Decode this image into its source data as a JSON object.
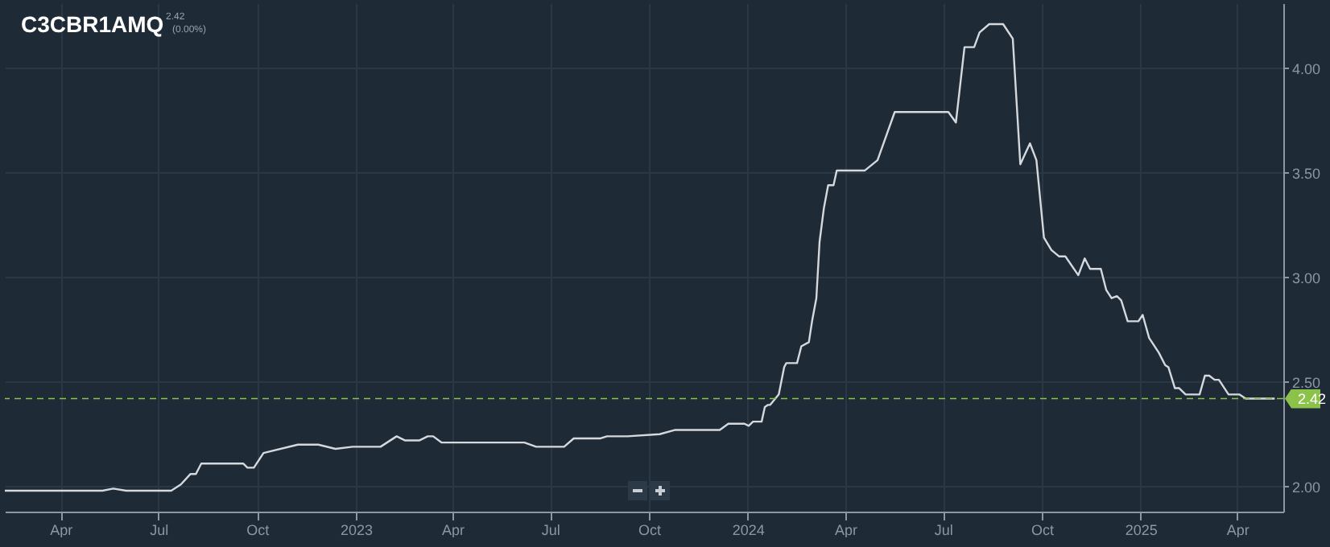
{
  "chart_data": {
    "type": "line",
    "title": "C3CBR1AMQ",
    "annotations": [
      "2.42",
      "(0.00%)"
    ],
    "x": [
      "2022-02-08",
      "2022-05-10",
      "2022-05-20",
      "2022-06-01",
      "2022-07-13",
      "2022-07-22",
      "2022-07-31",
      "2022-08-05",
      "2022-08-10",
      "2022-09-18",
      "2022-09-22",
      "2022-09-28",
      "2022-10-07",
      "2022-11-08",
      "2022-11-27",
      "2022-12-13",
      "2022-12-29",
      "2023-01-24",
      "2023-02-08",
      "2023-02-16",
      "2023-03-01",
      "2023-03-09",
      "2023-03-14",
      "2023-03-22",
      "2023-06-07",
      "2023-06-18",
      "2023-07-14",
      "2023-07-23",
      "2023-08-17",
      "2023-08-23",
      "2023-09-11",
      "2023-10-11",
      "2023-10-25",
      "2023-12-06",
      "2023-12-14",
      "2023-12-29",
      "2024-01-02",
      "2024-01-06",
      "2024-01-14",
      "2024-01-17",
      "2024-01-20",
      "2024-01-22",
      "2024-01-30",
      "2024-02-04",
      "2024-02-06",
      "2024-02-16",
      "2024-02-20",
      "2024-02-27",
      "2024-03-01",
      "2024-03-05",
      "2024-03-08",
      "2024-03-12",
      "2024-03-16",
      "2024-03-21",
      "2024-03-24",
      "2024-04-19",
      "2024-05-01",
      "2024-05-17",
      "2024-07-06",
      "2024-07-13",
      "2024-07-21",
      "2024-07-30",
      "2024-08-04",
      "2024-08-13",
      "2024-08-26",
      "2024-09-04",
      "2024-09-11",
      "2024-09-20",
      "2024-09-26",
      "2024-10-03",
      "2024-10-10",
      "2024-10-17",
      "2024-10-23",
      "2024-11-04",
      "2024-11-10",
      "2024-11-15",
      "2024-11-25",
      "2024-11-30",
      "2024-12-05",
      "2024-12-10",
      "2024-12-14",
      "2024-12-20",
      "2024-12-30",
      "2025-01-03",
      "2025-01-09",
      "2025-01-18",
      "2025-01-24",
      "2025-01-27",
      "2025-02-02",
      "2025-02-06",
      "2025-02-12",
      "2025-02-25",
      "2025-03-02",
      "2025-03-06",
      "2025-03-11",
      "2025-03-15",
      "2025-03-24",
      "2025-04-03",
      "2025-04-09",
      "2025-05-06"
    ],
    "series": [
      {
        "color": "#d5d9de",
        "values": [
          1.98,
          1.98,
          1.99,
          1.98,
          1.98,
          2.01,
          2.06,
          2.06,
          2.11,
          2.11,
          2.09,
          2.09,
          2.16,
          2.2,
          2.2,
          2.18,
          2.19,
          2.19,
          2.24,
          2.22,
          2.22,
          2.24,
          2.24,
          2.21,
          2.21,
          2.19,
          2.19,
          2.23,
          2.23,
          2.24,
          2.24,
          2.25,
          2.27,
          2.27,
          2.3,
          2.3,
          2.29,
          2.31,
          2.31,
          2.38,
          2.39,
          2.39,
          2.44,
          2.57,
          2.59,
          2.59,
          2.67,
          2.69,
          2.79,
          2.9,
          3.17,
          3.33,
          3.44,
          3.44,
          3.51,
          3.51,
          3.56,
          3.79,
          3.79,
          3.74,
          4.1,
          4.1,
          4.17,
          4.21,
          4.21,
          4.14,
          3.54,
          3.64,
          3.56,
          3.19,
          3.13,
          3.1,
          3.1,
          3.01,
          3.09,
          3.04,
          3.04,
          2.94,
          2.9,
          2.91,
          2.89,
          2.79,
          2.79,
          2.82,
          2.71,
          2.64,
          2.58,
          2.57,
          2.47,
          2.47,
          2.44,
          2.44,
          2.53,
          2.53,
          2.51,
          2.51,
          2.44,
          2.44,
          2.42,
          2.42
        ]
      }
    ],
    "xlim": [
      "2022-02-08",
      "2025-05-14"
    ],
    "xticks": [
      {
        "value": "2022-04-01",
        "label": "Apr"
      },
      {
        "value": "2022-07-01",
        "label": "Jul"
      },
      {
        "value": "2022-10-01",
        "label": "Oct"
      },
      {
        "value": "2023-01-01",
        "label": "2023"
      },
      {
        "value": "2023-04-01",
        "label": "Apr"
      },
      {
        "value": "2023-07-01",
        "label": "Jul"
      },
      {
        "value": "2023-10-01",
        "label": "Oct"
      },
      {
        "value": "2024-01-01",
        "label": "2024"
      },
      {
        "value": "2024-04-01",
        "label": "Apr"
      },
      {
        "value": "2024-07-01",
        "label": "Jul"
      },
      {
        "value": "2024-10-01",
        "label": "Oct"
      },
      {
        "value": "2025-01-01",
        "label": "2025"
      },
      {
        "value": "2025-04-01",
        "label": "Apr"
      }
    ],
    "ylim": [
      1.88,
      4.31
    ],
    "yticks": [
      {
        "value": 2,
        "label": "2.00"
      },
      {
        "value": 2.5,
        "label": "2.50"
      },
      {
        "value": 3,
        "label": "3.00"
      },
      {
        "value": 3.5,
        "label": "3.50"
      },
      {
        "value": 4,
        "label": "4.00"
      }
    ],
    "ref_lines": [
      {
        "axis": "y",
        "value": 2.42,
        "label": "2.42",
        "color": "#8bc34a",
        "line_style": "dashed"
      }
    ],
    "grid": true,
    "marker": "none",
    "line_style": "solid"
  }
}
